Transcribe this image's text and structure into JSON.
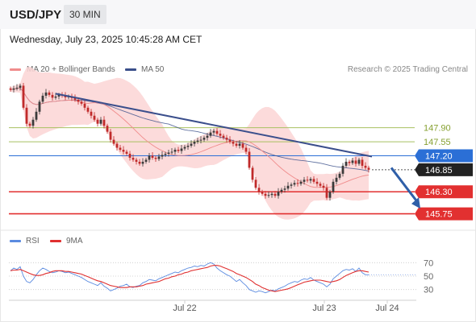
{
  "header": {
    "symbol": "USD/JPY",
    "timeframe": "30 MIN"
  },
  "subheader": {
    "datetime": "Wednesday, July 23, 2025 10:45:28 AM CET"
  },
  "legend": {
    "ma20": "MA 20 + Bollinger Bands",
    "ma50": "MA 50",
    "credit": "Research © 2025 Trading Central",
    "rsi": "RSI",
    "rsi_ma": "9MA"
  },
  "colors": {
    "ma20": "#f08c8c",
    "ma50": "#3a4f8a",
    "bands": "#fbd5d5",
    "trend": "#3b4f8c",
    "support": "#e23030",
    "resistance": "#a8c060",
    "pivot": "#2b6fd6",
    "current": "#222222",
    "arrow": "#2f5fa8",
    "rsi": "#5b8be0",
    "rsi_ma": "#e03030",
    "candle_up": "#3a3a3a",
    "candle_down": "#c02a2a"
  },
  "chart_data": [
    {
      "type": "candlestick",
      "title": "",
      "y_range": [
        145.4,
        149.1
      ],
      "x_ticks": [
        "Jul 22",
        "Jul 23",
        "Jul 24"
      ],
      "levels": [
        {
          "value": 147.9,
          "label": "147.90",
          "kind": "resistance"
        },
        {
          "value": 147.55,
          "label": "147.55",
          "kind": "resistance"
        },
        {
          "value": 147.2,
          "label": "147.20",
          "kind": "pivot"
        },
        {
          "value": 146.85,
          "label": "146.85",
          "kind": "current"
        },
        {
          "value": 146.3,
          "label": "146.30",
          "kind": "support"
        },
        {
          "value": 145.75,
          "label": "145.75",
          "kind": "support"
        }
      ],
      "trendline": [
        {
          "bar": 14,
          "value": 148.75
        },
        {
          "bar": 112,
          "value": 147.18
        }
      ],
      "forecast_arrow": [
        {
          "bar": 118,
          "value": 146.9
        },
        {
          "bar": 127,
          "value": 145.88
        }
      ],
      "close": [
        148.85,
        148.88,
        148.9,
        148.95,
        148.4,
        148.0,
        147.95,
        148.1,
        148.3,
        148.55,
        148.7,
        148.78,
        148.72,
        148.65,
        148.68,
        148.72,
        148.7,
        148.66,
        148.68,
        148.64,
        148.6,
        148.55,
        148.5,
        148.4,
        148.3,
        148.2,
        148.1,
        148.0,
        148.1,
        147.95,
        147.8,
        147.6,
        147.5,
        147.4,
        147.35,
        147.3,
        147.25,
        147.15,
        147.1,
        147.05,
        147.0,
        147.05,
        147.1,
        147.2,
        147.15,
        147.12,
        147.18,
        147.22,
        147.25,
        147.28,
        147.3,
        147.35,
        147.32,
        147.38,
        147.42,
        147.45,
        147.5,
        147.55,
        147.58,
        147.6,
        147.65,
        147.7,
        147.78,
        147.82,
        147.75,
        147.7,
        147.65,
        147.6,
        147.55,
        147.5,
        147.45,
        147.5,
        147.4,
        147.3,
        146.9,
        146.6,
        146.4,
        146.3,
        146.25,
        146.2,
        146.22,
        146.25,
        146.2,
        146.3,
        146.35,
        146.38,
        146.45,
        146.48,
        146.52,
        146.5,
        146.55,
        146.6,
        146.58,
        146.62,
        146.55,
        146.5,
        146.45,
        146.4,
        146.15,
        146.3,
        146.55,
        146.65,
        146.75,
        146.95,
        147.05,
        147.02,
        147.08,
        147.0,
        147.1,
        146.95,
        146.9,
        146.85
      ]
    },
    {
      "type": "line",
      "title": "",
      "y_range": [
        20,
        80
      ],
      "y_ticks": [
        30,
        50,
        70
      ],
      "series": [
        {
          "name": "RSI",
          "values": [
            58,
            62,
            60,
            64,
            50,
            42,
            40,
            45,
            52,
            58,
            62,
            60,
            57,
            55,
            56,
            58,
            57,
            55,
            56,
            54,
            52,
            50,
            48,
            45,
            42,
            40,
            38,
            36,
            40,
            35,
            32,
            28,
            30,
            32,
            35,
            36,
            38,
            34,
            33,
            35,
            36,
            40,
            42,
            45,
            44,
            43,
            46,
            48,
            50,
            52,
            54,
            56,
            55,
            58,
            60,
            62,
            63,
            65,
            64,
            66,
            65,
            68,
            70,
            68,
            62,
            58,
            55,
            52,
            50,
            46,
            42,
            45,
            40,
            36,
            30,
            28,
            26,
            28,
            27,
            25,
            27,
            29,
            28,
            31,
            33,
            35,
            38,
            40,
            42,
            41,
            44,
            46,
            45,
            48,
            44,
            42,
            40,
            38,
            34,
            38,
            46,
            50,
            54,
            58,
            60,
            59,
            61,
            57,
            62,
            55,
            52,
            52
          ]
        },
        {
          "name": "9MA",
          "values": [
            58,
            59,
            59,
            60,
            58,
            56,
            54,
            52,
            51,
            51,
            52,
            54,
            55,
            57,
            58,
            58,
            58,
            57,
            57,
            56,
            55,
            54,
            53,
            51,
            49,
            47,
            45,
            43,
            42,
            40,
            38,
            36,
            35,
            34,
            33,
            33,
            33,
            34,
            34,
            34,
            35,
            36,
            38,
            39,
            40,
            41,
            42,
            44,
            46,
            47,
            49,
            50,
            52,
            53,
            55,
            56,
            58,
            59,
            60,
            61,
            62,
            63,
            65,
            66,
            66,
            65,
            63,
            61,
            59,
            57,
            54,
            52,
            50,
            48,
            45,
            42,
            38,
            36,
            33,
            31,
            29,
            28,
            27,
            28,
            29,
            30,
            31,
            33,
            35,
            37,
            39,
            41,
            42,
            43,
            44,
            44,
            44,
            43,
            42,
            41,
            42,
            43,
            45,
            48,
            51,
            53,
            55,
            57,
            58,
            58,
            57,
            56
          ]
        }
      ]
    }
  ]
}
